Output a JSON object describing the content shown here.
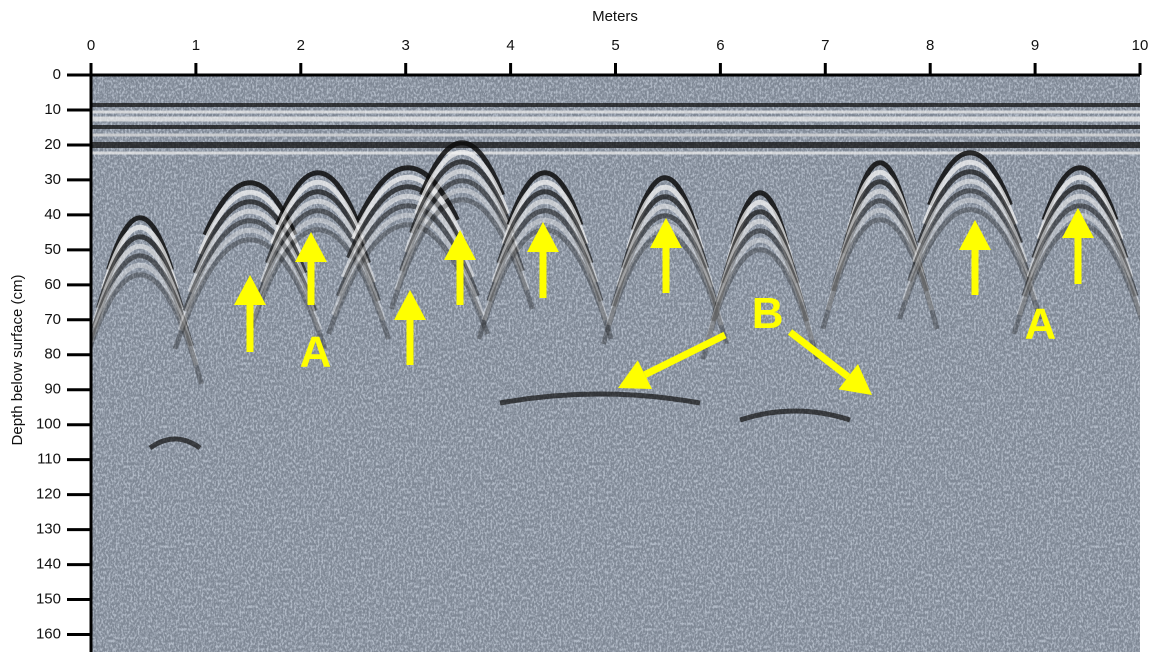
{
  "chart_data": {
    "type": "radargram",
    "x_label": "Meters",
    "y_label": "Depth below surface (cm)",
    "xlim": [
      0,
      10
    ],
    "xticks": [
      0,
      1,
      2,
      3,
      4,
      5,
      6,
      7,
      8,
      9,
      10
    ],
    "ylim": [
      0,
      165
    ],
    "yticks": [
      0,
      10,
      20,
      30,
      40,
      50,
      60,
      70,
      80,
      90,
      100,
      110,
      120,
      130,
      140,
      150,
      160
    ],
    "annotations": [
      {
        "text": "A",
        "x": 2.14,
        "y": 80
      },
      {
        "text": "A",
        "x": 9.05,
        "y": 72
      },
      {
        "text": "B",
        "x": 6.45,
        "y": 69
      }
    ],
    "annotation_color": "#ffff00"
  }
}
